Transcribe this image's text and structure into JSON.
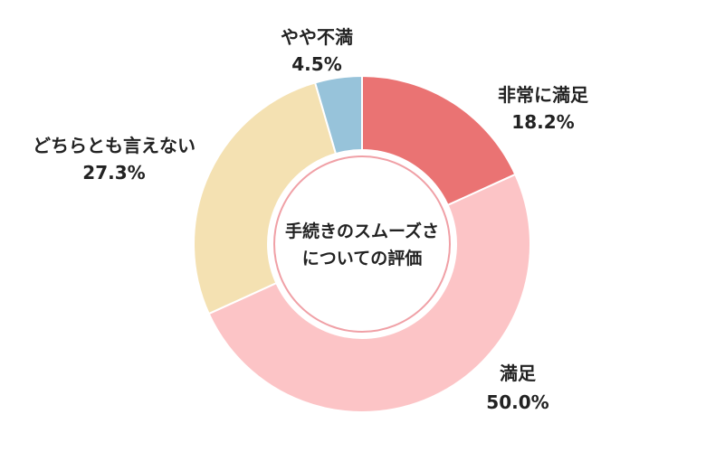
{
  "chart_data": {
    "type": "pie",
    "variant": "donut",
    "center_title_lines": [
      "手続きのスムーズさ",
      "についての評価"
    ],
    "categories": [
      "非常に満足",
      "満足",
      "どちらとも言えない",
      "やや不満"
    ],
    "values": [
      18.2,
      50.0,
      27.3,
      4.5
    ],
    "value_labels": [
      "18.2%",
      "50.0%",
      "27.3%",
      "4.5%"
    ],
    "colors": [
      "#ea7373",
      "#fcc4c6",
      "#f4e1b2",
      "#97c3da"
    ],
    "start": "12 o'clock",
    "direction": "clockwise",
    "legend": "none"
  }
}
